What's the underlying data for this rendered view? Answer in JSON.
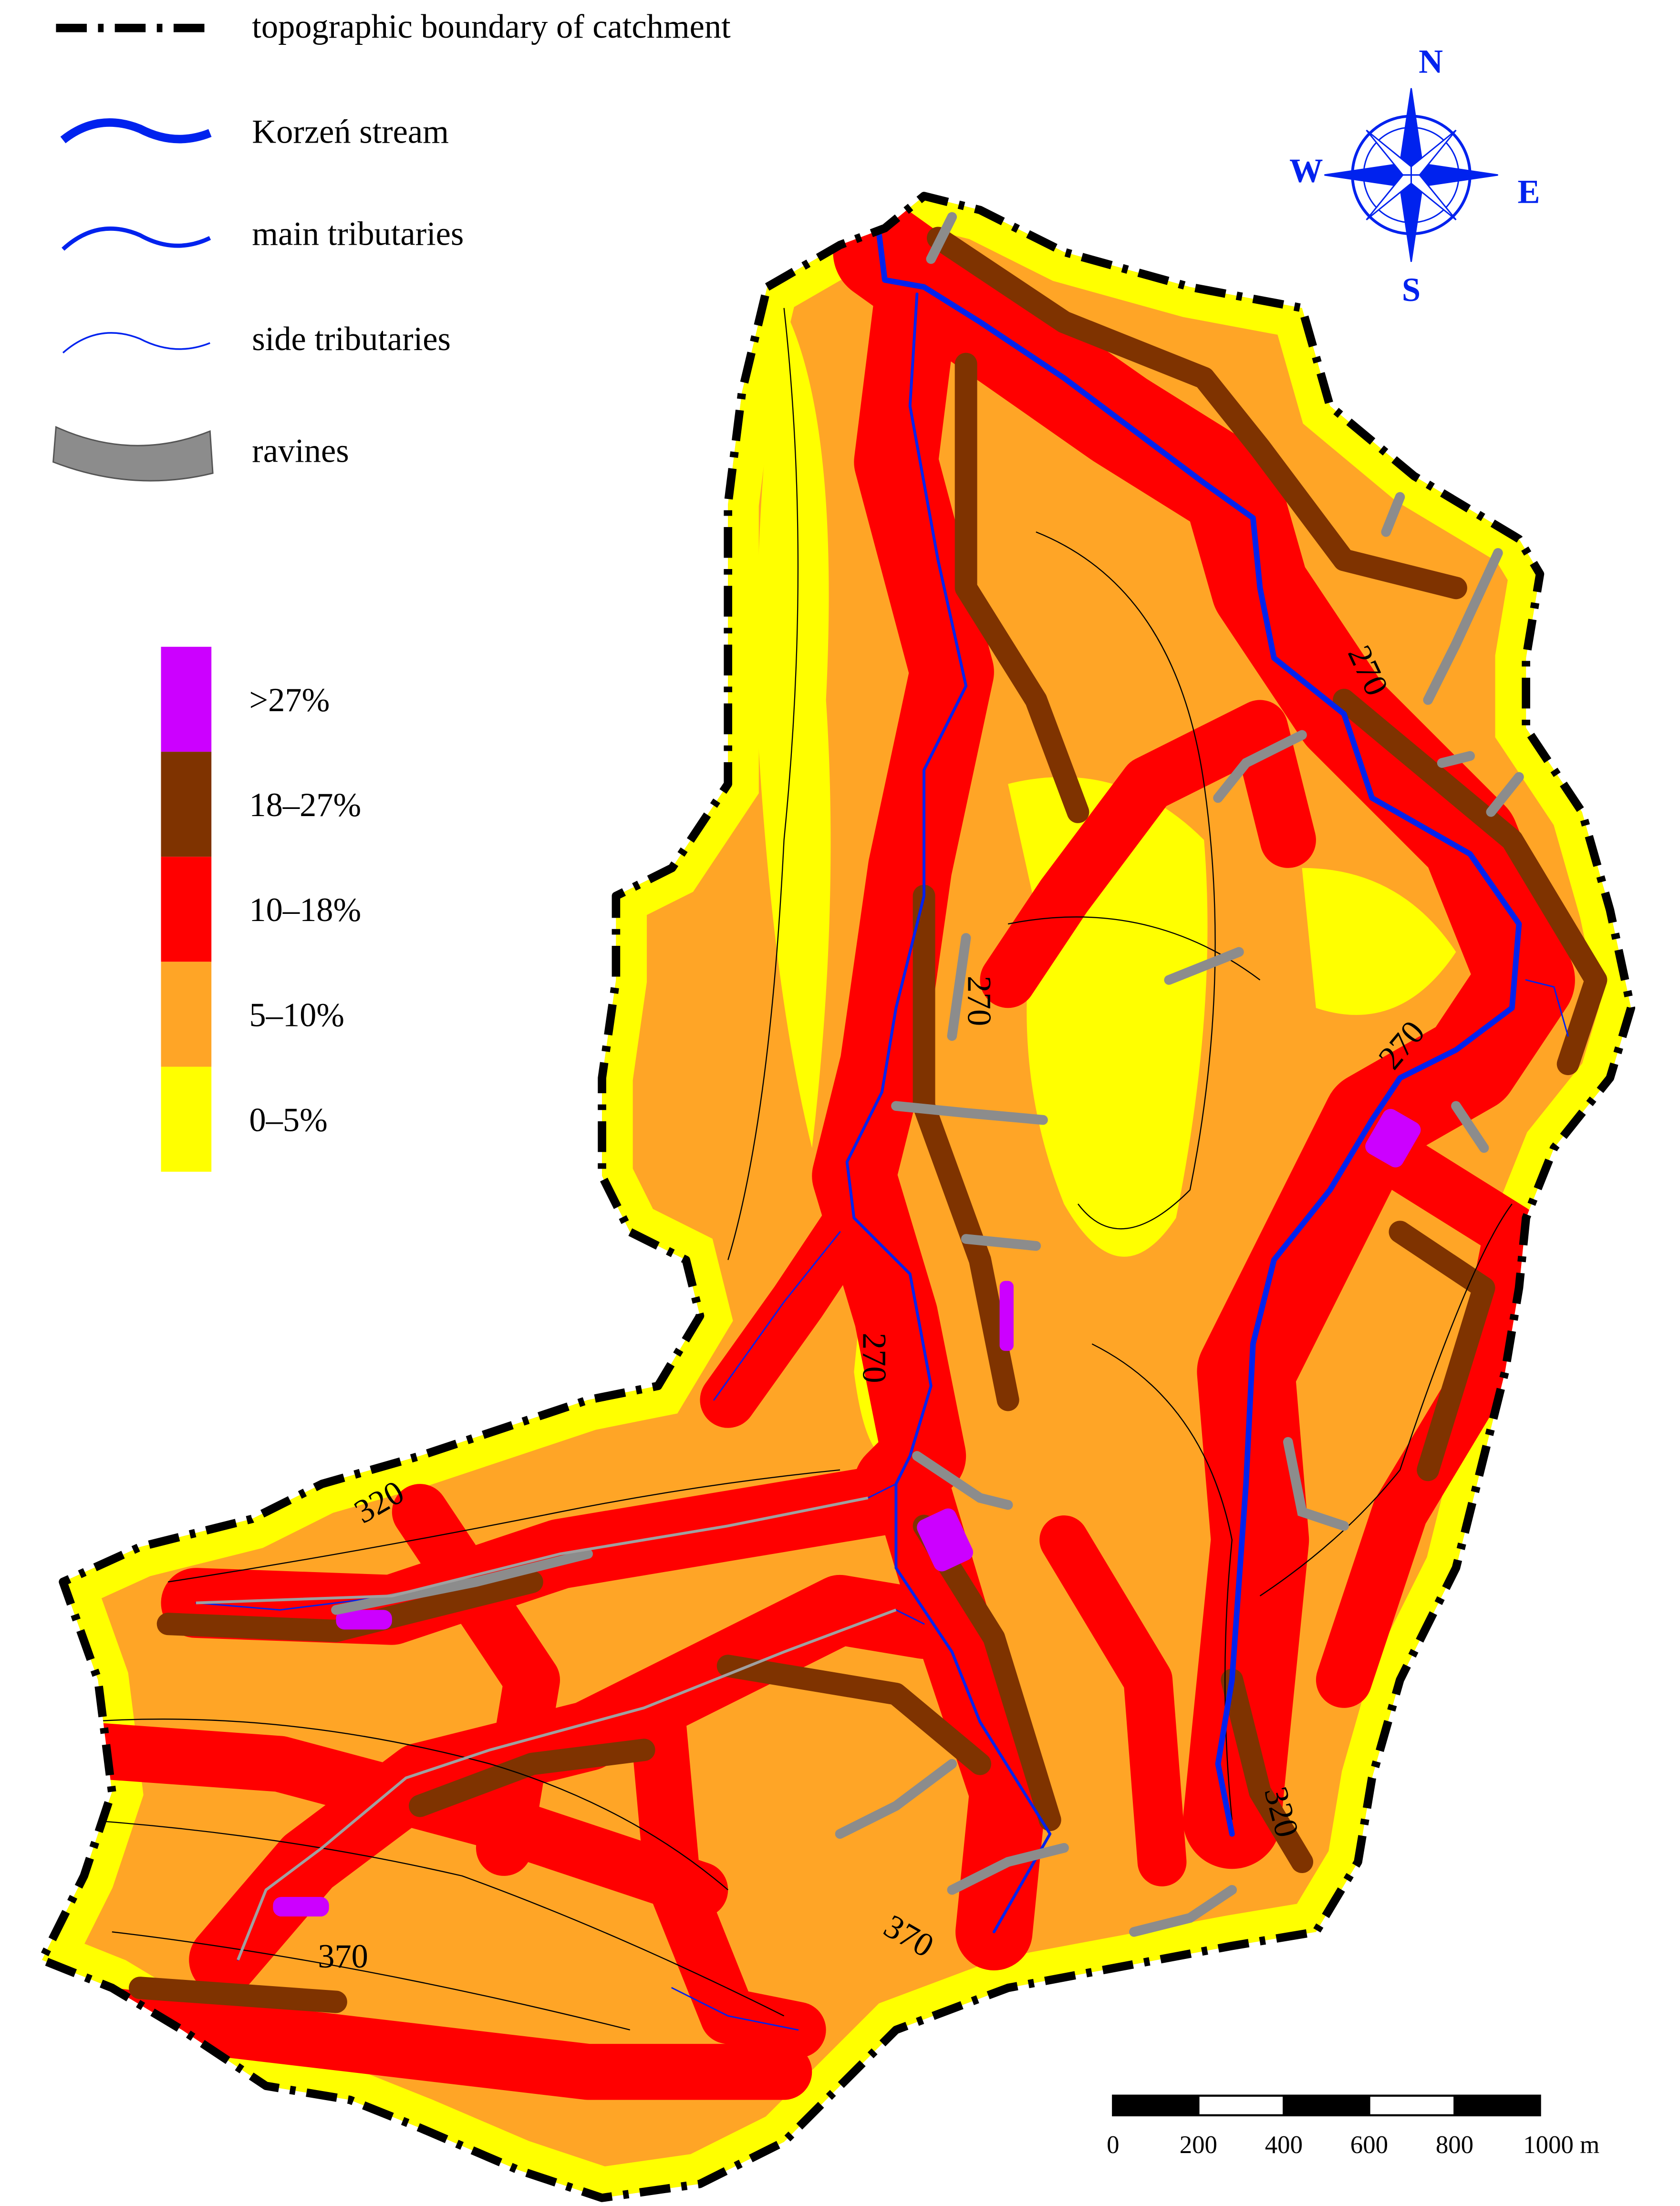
{
  "legend": {
    "lines": [
      {
        "label": "topographic boundary of catchment"
      },
      {
        "label": "Korzeń stream"
      },
      {
        "label": "main tributaries"
      },
      {
        "label": "side tributaries"
      },
      {
        "label": "ravines"
      }
    ]
  },
  "slope_classes": [
    {
      "label": ">27%",
      "color": "#cc00ff"
    },
    {
      "label": "18–27%",
      "color": "#7f3300"
    },
    {
      "label": "10–18%",
      "color": "#ff0000"
    },
    {
      "label": "5–10%",
      "color": "#ffa526"
    },
    {
      "label": "0–5%",
      "color": "#ffff00"
    }
  ],
  "compass": {
    "n": "N",
    "e": "E",
    "s": "S",
    "w": "W"
  },
  "contour_labels": [
    "270",
    "270",
    "270",
    "270",
    "320",
    "320",
    "370",
    "370"
  ],
  "scale_bar": {
    "ticks": [
      0,
      200,
      400,
      600,
      800,
      {
        "value": 1000,
        "label": "1000 m"
      }
    ]
  }
}
